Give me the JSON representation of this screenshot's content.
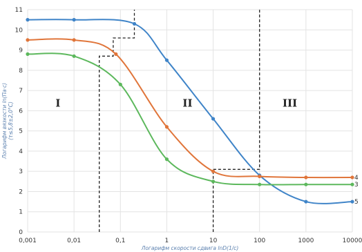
{
  "chart_data": {
    "type": "line",
    "xscale": "log",
    "xlim": [
      0.001,
      10000
    ],
    "ylim": [
      0,
      11
    ],
    "grid": true,
    "xlabel": "Логарифм скорости сдвига lnD(1/c)",
    "ylabel": [
      "Логарифм вязкости ln(Па·с)",
      "(τ≤5,8±2,0°C)"
    ],
    "x_ticks": [
      "0,001",
      "0,01",
      "0,1",
      "1",
      "10",
      "100",
      "1000",
      "10000"
    ],
    "y_ticks": [
      "0",
      "1",
      "2",
      "3",
      "4",
      "5",
      "6",
      "7",
      "8",
      "9",
      "10",
      "11"
    ],
    "region_labels": [
      {
        "text": "I",
        "x": 0.0045,
        "y": 6.2
      },
      {
        "text": "II",
        "x": 2.8,
        "y": 6.2
      },
      {
        "text": "III",
        "x": 450,
        "y": 6.2
      }
    ],
    "series": [
      {
        "name": "5",
        "color": "#3f84c8",
        "x": [
          0.001,
          0.01,
          0.2,
          1,
          10,
          100,
          1000,
          10000
        ],
        "y": [
          10.5,
          10.5,
          10.3,
          8.5,
          5.6,
          2.8,
          1.5,
          1.5
        ]
      },
      {
        "name": "4",
        "color": "#e0753a",
        "x": [
          0.001,
          0.01,
          0.08,
          1,
          10,
          100,
          1000,
          10000
        ],
        "y": [
          9.5,
          9.5,
          8.8,
          5.2,
          3.0,
          2.75,
          2.7,
          2.7
        ]
      },
      {
        "name": "3",
        "color": "#5cb85c",
        "x": [
          0.001,
          0.01,
          0.1,
          1,
          10,
          100,
          1000,
          10000
        ],
        "y": [
          8.8,
          8.7,
          7.3,
          3.6,
          2.5,
          2.35,
          2.35,
          2.35
        ]
      }
    ],
    "boundary_lines": [
      {
        "x": [
          0.035,
          0.035,
          0.07,
          0.07,
          0.2,
          0.2
        ],
        "y": [
          0,
          8.7,
          8.7,
          9.6,
          9.6,
          11
        ]
      },
      {
        "x": [
          10,
          10,
          100,
          100
        ],
        "y": [
          0,
          3.1,
          3.1,
          11
        ]
      }
    ]
  }
}
